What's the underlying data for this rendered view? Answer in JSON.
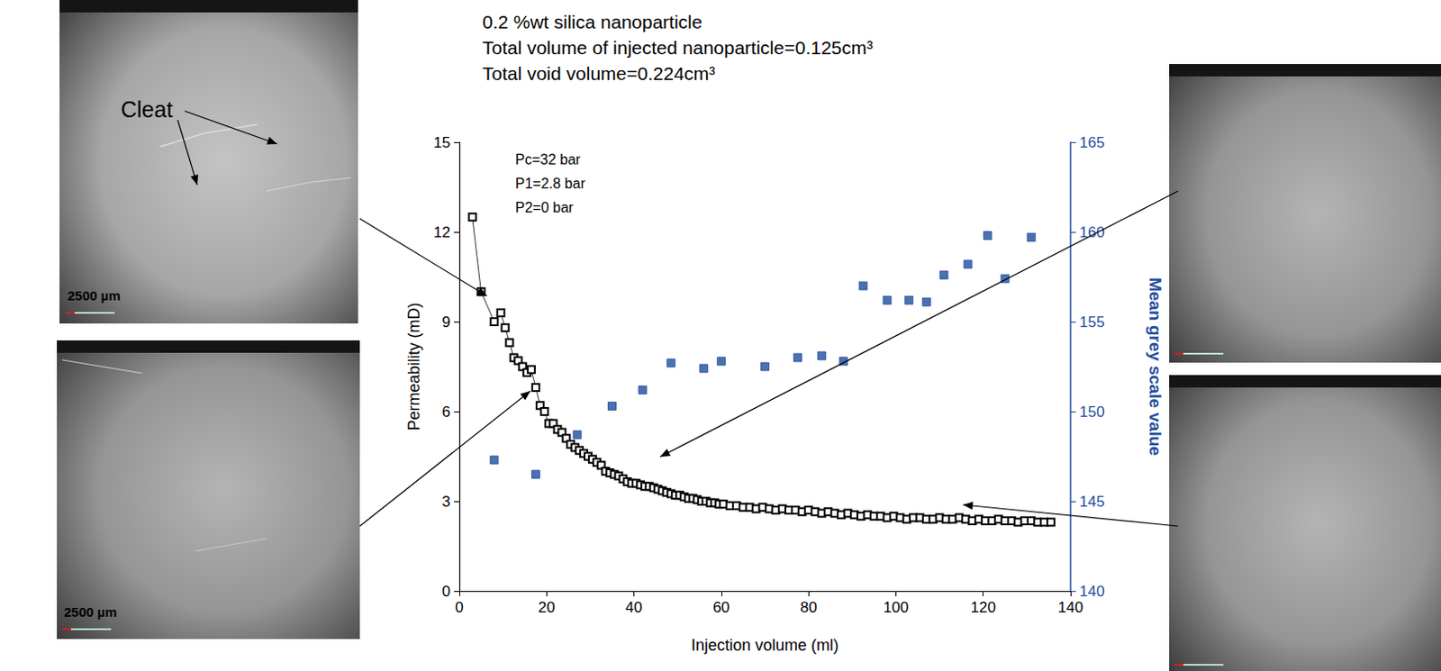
{
  "chart_data": {
    "type": "line",
    "title": "0.2 %wt silica nanoparticle",
    "annotations": [
      "Total volume of injected nanoparticle=0.125cm³",
      "Total void volume=0.224cm³"
    ],
    "conditions": [
      "Pc=32 bar",
      "P1=2.8 bar",
      "P2=0 bar"
    ],
    "micrographs": [
      {
        "feature_label": "Cleat",
        "scale_bar_label": "2500 µm"
      },
      {
        "scale_bar_label": "2500 µm"
      }
    ],
    "x_label": "Injection volume (ml)",
    "y_label": "Permeability (mD)",
    "y2_label": "Mean grey scale value",
    "xlim": [
      0,
      140
    ],
    "xticks": [
      0,
      20,
      40,
      60,
      80,
      100,
      120,
      140
    ],
    "ylim": [
      0,
      15
    ],
    "yticks": [
      0,
      3,
      6,
      9,
      12,
      15
    ],
    "y2lim": [
      140,
      165
    ],
    "y2ticks": [
      140,
      145,
      150,
      155,
      160,
      165
    ],
    "grid": false,
    "series": [
      {
        "type": "line",
        "axis": "y",
        "color": "#000000",
        "marker": "square_open",
        "line_style": "solid",
        "x": [
          3,
          5,
          8,
          9.5,
          10.5,
          11.5,
          12.5,
          13.5,
          14.5,
          15.5,
          16.5,
          17.5,
          18.5,
          19.5,
          20.5,
          21.5,
          22.5,
          23.5,
          24.5,
          25.5,
          26.5,
          27.5,
          28.5,
          29.5,
          30.5,
          31.5,
          32.5,
          33.5,
          34.5,
          35.5,
          36.5,
          37.5,
          38.5,
          39.5,
          40.5,
          41.5,
          42.5,
          43.5,
          44.5,
          45.5,
          46.5,
          47.5,
          48.5,
          49.5,
          50.5,
          51.5,
          52.5,
          53.5,
          54.5,
          55.5,
          56.5,
          57.5,
          58.5,
          59.5,
          60.5,
          62,
          63.5,
          65,
          66.5,
          68,
          69.5,
          71,
          72.5,
          74,
          75.5,
          77,
          78.5,
          80,
          81.5,
          83,
          84.5,
          86,
          87.5,
          89,
          90.5,
          92,
          93.5,
          95,
          96.5,
          98,
          99.5,
          101,
          102.5,
          104,
          105.5,
          107,
          108.5,
          110,
          111.5,
          113,
          114.5,
          116,
          117.5,
          119,
          120.5,
          122,
          123.5,
          125,
          126.5,
          128,
          129.5,
          131,
          132.5,
          134,
          135.5
        ],
        "values": [
          12.5,
          10.0,
          9.0,
          9.3,
          8.8,
          8.3,
          7.8,
          7.7,
          7.5,
          7.3,
          7.4,
          6.8,
          6.2,
          6.0,
          5.6,
          5.6,
          5.4,
          5.3,
          5.1,
          4.9,
          4.8,
          4.7,
          4.6,
          4.5,
          4.4,
          4.3,
          4.2,
          4.0,
          3.95,
          3.9,
          3.85,
          3.75,
          3.65,
          3.6,
          3.6,
          3.55,
          3.5,
          3.5,
          3.45,
          3.4,
          3.35,
          3.3,
          3.25,
          3.2,
          3.2,
          3.15,
          3.1,
          3.1,
          3.05,
          3.0,
          3.0,
          2.95,
          2.95,
          2.9,
          2.9,
          2.85,
          2.85,
          2.8,
          2.8,
          2.75,
          2.8,
          2.75,
          2.7,
          2.75,
          2.7,
          2.7,
          2.65,
          2.7,
          2.65,
          2.6,
          2.65,
          2.6,
          2.55,
          2.6,
          2.55,
          2.5,
          2.55,
          2.5,
          2.5,
          2.45,
          2.5,
          2.45,
          2.4,
          2.45,
          2.45,
          2.4,
          2.4,
          2.45,
          2.4,
          2.4,
          2.45,
          2.4,
          2.35,
          2.4,
          2.35,
          2.35,
          2.4,
          2.35,
          2.35,
          2.3,
          2.35,
          2.35,
          2.3,
          2.3,
          2.3
        ]
      },
      {
        "type": "scatter",
        "axis": "y2",
        "color": "#1f4e9e",
        "marker": "square",
        "x": [
          8,
          17.5,
          27,
          35,
          42,
          48.5,
          56,
          60,
          70,
          77.5,
          83,
          88,
          92.5,
          98,
          103,
          107,
          111,
          116.5,
          121,
          125,
          131
        ],
        "values": [
          147.3,
          146.5,
          148.7,
          150.3,
          151.2,
          152.7,
          152.4,
          152.8,
          152.5,
          153.0,
          153.1,
          152.8,
          157.0,
          156.2,
          156.2,
          156.1,
          157.6,
          158.2,
          159.8,
          157.4,
          159.7
        ]
      }
    ]
  }
}
